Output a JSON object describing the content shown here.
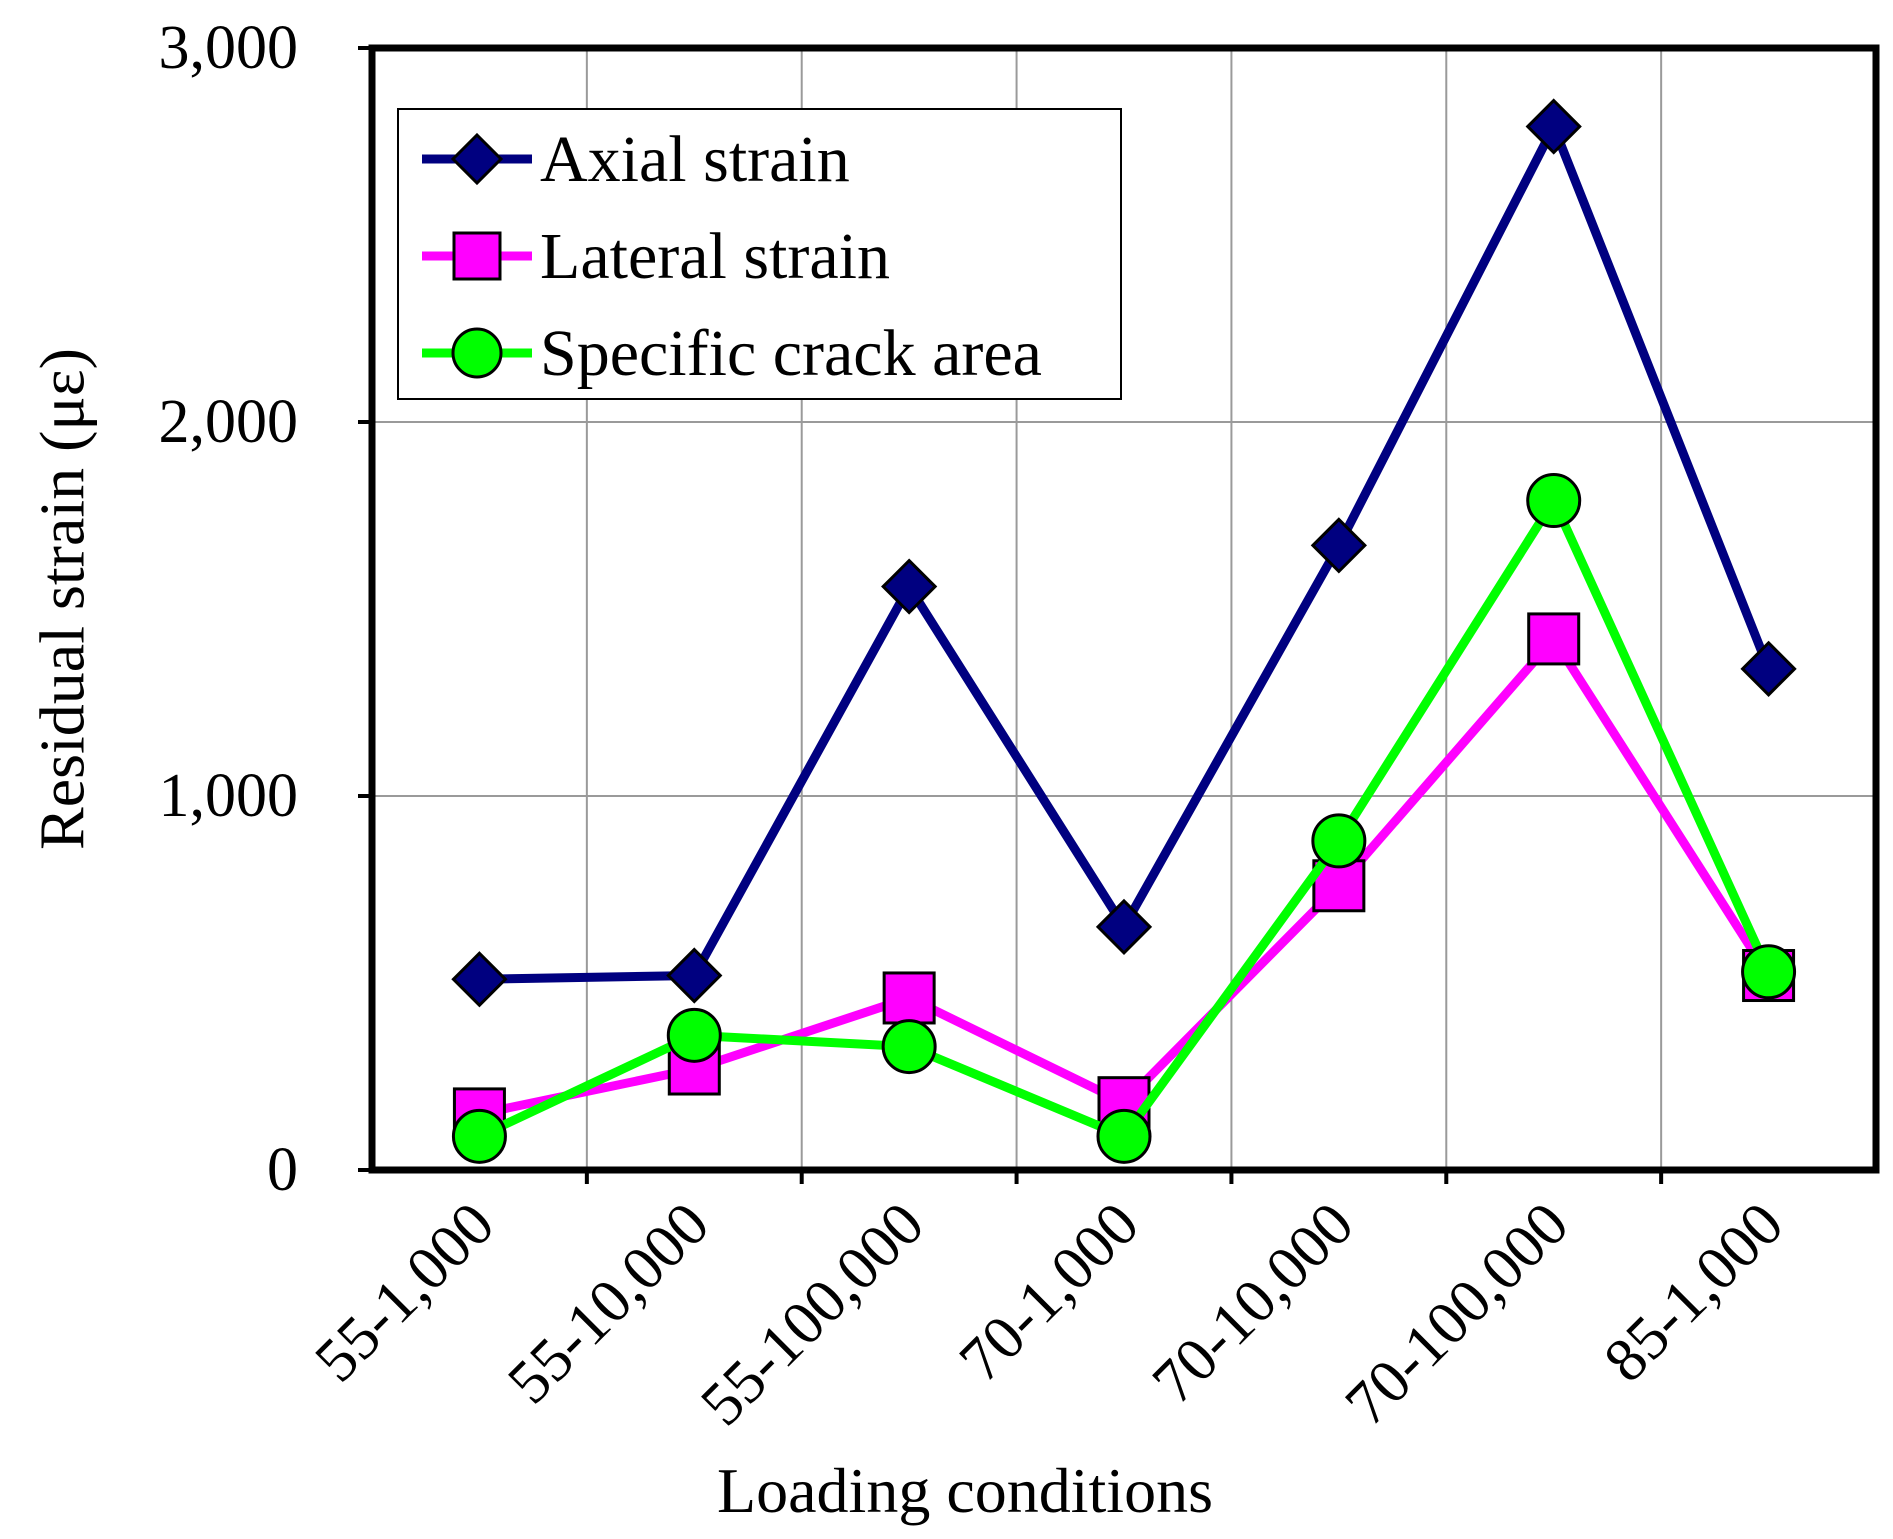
{
  "chart_data": {
    "type": "line",
    "title": "",
    "xlabel": "Loading conditions",
    "ylabel": "Residual strain (με)",
    "categories": [
      "55-1,000",
      "55-10,000",
      "55-100,000",
      "70-1,000",
      "70-10,000",
      "70-100,000",
      "85-1,000"
    ],
    "ylim": [
      0,
      3000
    ],
    "yticks": [
      0,
      1000,
      2000,
      3000
    ],
    "ytick_labels": [
      "0",
      "1,000",
      "2,000",
      "3,000"
    ],
    "grid": true,
    "legend_position": "top-left",
    "series": [
      {
        "name": "Axial strain",
        "marker": "diamond",
        "color": "#000080",
        "values": [
          510,
          520,
          1560,
          650,
          1670,
          2790,
          1340
        ]
      },
      {
        "name": "Lateral strain",
        "marker": "square",
        "color": "#ff00ff",
        "values": [
          150,
          270,
          460,
          180,
          760,
          1420,
          520
        ]
      },
      {
        "name": "Specific crack area",
        "marker": "circle",
        "color": "#00ff00",
        "values": [
          90,
          360,
          330,
          90,
          880,
          1790,
          530
        ]
      }
    ]
  }
}
